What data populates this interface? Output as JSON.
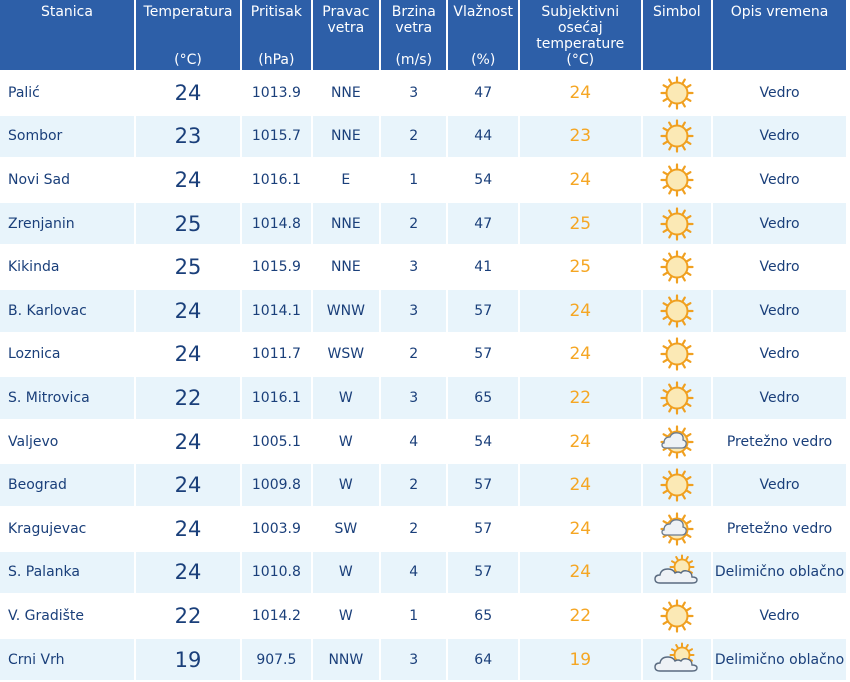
{
  "header": {
    "stanica": "Stanica",
    "temperatura": "Temperatura",
    "temperatura_unit": "(°C)",
    "pritisak": "Pritisak",
    "pritisak_unit": "(hPa)",
    "pravac": "Pravac vetra",
    "brzina": "Brzina vetra",
    "brzina_unit": "(m/s)",
    "vlaznost": "Vlažnost",
    "vlaznost_unit": "(%)",
    "subj": "Subjektivni osećaj temperature",
    "subj_unit": "(°C)",
    "simbol": "Simbol",
    "opis": "Opis vremena"
  },
  "rows": [
    {
      "station": "Palić",
      "temp": "24",
      "pressure": "1013.9",
      "dir": "NNE",
      "speed": "3",
      "humidity": "47",
      "feel": "24",
      "icon": "sun-icon",
      "desc": "Vedro"
    },
    {
      "station": "Sombor",
      "temp": "23",
      "pressure": "1015.7",
      "dir": "NNE",
      "speed": "2",
      "humidity": "44",
      "feel": "23",
      "icon": "sun-icon",
      "desc": "Vedro"
    },
    {
      "station": "Novi Sad",
      "temp": "24",
      "pressure": "1016.1",
      "dir": "E",
      "speed": "1",
      "humidity": "54",
      "feel": "24",
      "icon": "sun-icon",
      "desc": "Vedro"
    },
    {
      "station": "Zrenjanin",
      "temp": "25",
      "pressure": "1014.8",
      "dir": "NNE",
      "speed": "2",
      "humidity": "47",
      "feel": "25",
      "icon": "sun-icon",
      "desc": "Vedro"
    },
    {
      "station": "Kikinda",
      "temp": "25",
      "pressure": "1015.9",
      "dir": "NNE",
      "speed": "3",
      "humidity": "41",
      "feel": "25",
      "icon": "sun-icon",
      "desc": "Vedro"
    },
    {
      "station": "B. Karlovac",
      "temp": "24",
      "pressure": "1014.1",
      "dir": "WNW",
      "speed": "3",
      "humidity": "57",
      "feel": "24",
      "icon": "sun-icon",
      "desc": "Vedro"
    },
    {
      "station": "Loznica",
      "temp": "24",
      "pressure": "1011.7",
      "dir": "WSW",
      "speed": "2",
      "humidity": "57",
      "feel": "24",
      "icon": "sun-icon",
      "desc": "Vedro"
    },
    {
      "station": "S. Mitrovica",
      "temp": "22",
      "pressure": "1016.1",
      "dir": "W",
      "speed": "3",
      "humidity": "65",
      "feel": "22",
      "icon": "sun-icon",
      "desc": "Vedro"
    },
    {
      "station": "Valjevo",
      "temp": "24",
      "pressure": "1005.1",
      "dir": "W",
      "speed": "4",
      "humidity": "54",
      "feel": "24",
      "icon": "sun-small-cloud-icon",
      "desc": "Pretežno vedro"
    },
    {
      "station": "Beograd",
      "temp": "24",
      "pressure": "1009.8",
      "dir": "W",
      "speed": "2",
      "humidity": "57",
      "feel": "24",
      "icon": "sun-icon",
      "desc": "Vedro"
    },
    {
      "station": "Kragujevac",
      "temp": "24",
      "pressure": "1003.9",
      "dir": "SW",
      "speed": "2",
      "humidity": "57",
      "feel": "24",
      "icon": "sun-small-cloud-icon",
      "desc": "Pretežno vedro"
    },
    {
      "station": "S. Palanka",
      "temp": "24",
      "pressure": "1010.8",
      "dir": "W",
      "speed": "4",
      "humidity": "57",
      "feel": "24",
      "icon": "partly-cloudy-icon",
      "desc": "Delimično oblačno"
    },
    {
      "station": "V. Gradište",
      "temp": "22",
      "pressure": "1014.2",
      "dir": "W",
      "speed": "1",
      "humidity": "65",
      "feel": "22",
      "icon": "sun-icon",
      "desc": "Vedro"
    },
    {
      "station": "Crni Vrh",
      "temp": "19",
      "pressure": "907.5",
      "dir": "NNW",
      "speed": "3",
      "humidity": "64",
      "feel": "19",
      "icon": "partly-cloudy-icon",
      "desc": "Delimično oblačno"
    }
  ],
  "colors": {
    "header_bg": "#2d5fa8",
    "row_alt_bg": "#e8f4fb",
    "text_blue": "#1a3f7a",
    "feel_orange": "#f5a623"
  }
}
